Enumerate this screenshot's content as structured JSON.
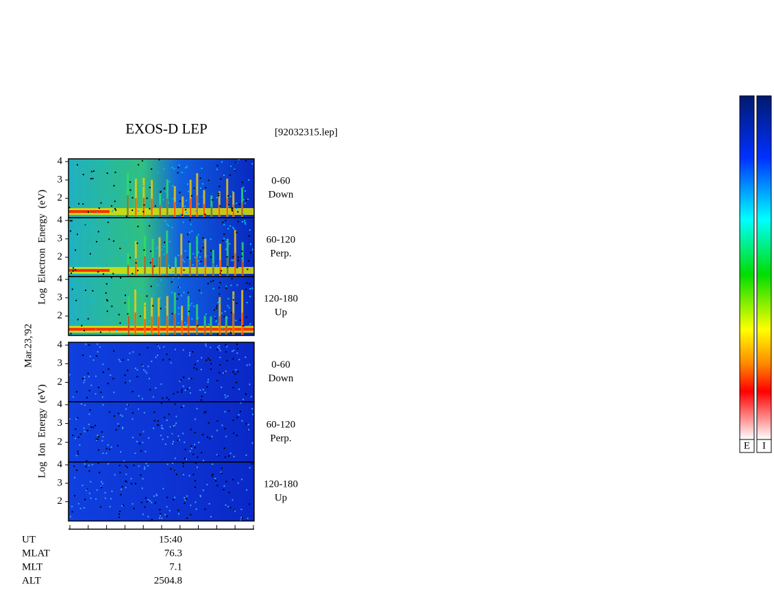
{
  "title": "EXOS-D LEP",
  "file": "[92032315.lep]",
  "date": "Mar.23,'92",
  "electron_axis_label": "Log  Electron  Energy  (eV)",
  "ion_axis_label": "Log  Ion  Energy  (eV)",
  "ylim": [
    0.95,
    4.15
  ],
  "yticks": [
    2,
    3,
    4
  ],
  "panels": [
    {
      "angle": "0-60",
      "direction": "Down"
    },
    {
      "angle": "60-120",
      "direction": "Perp."
    },
    {
      "angle": "120-180",
      "direction": "Up"
    },
    {
      "angle": "0-60",
      "direction": "Down"
    },
    {
      "angle": "60-120",
      "direction": "Perp."
    },
    {
      "angle": "120-180",
      "direction": "Up"
    }
  ],
  "footer": [
    [
      "UT",
      "15:40"
    ],
    [
      "MLAT",
      "76.3"
    ],
    [
      "MLT",
      "7.1"
    ],
    [
      "ALT",
      "2504.8"
    ]
  ],
  "colorbars": [
    "E",
    "I"
  ]
}
